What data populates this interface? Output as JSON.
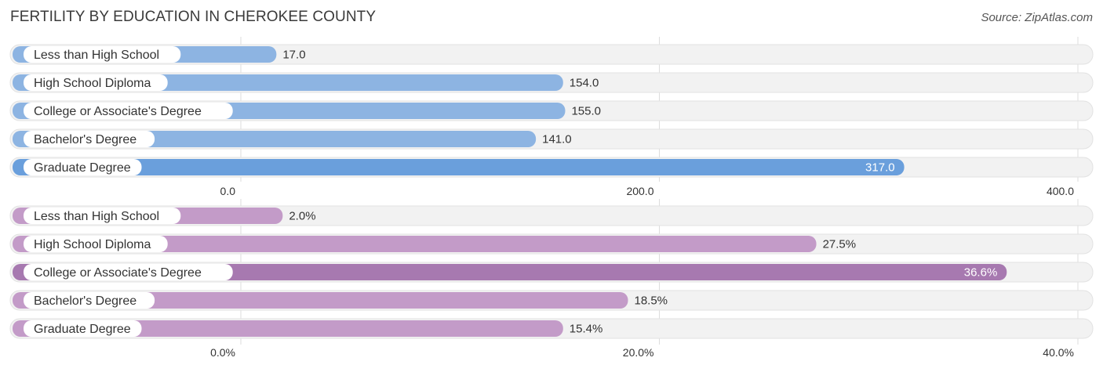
{
  "title": "FERTILITY BY EDUCATION IN CHEROKEE COUNTY",
  "source": "Source: ZipAtlas.com",
  "chart_data": [
    {
      "type": "bar",
      "orientation": "horizontal",
      "categories": [
        "Less than High School",
        "High School Diploma",
        "College or Associate's Degree",
        "Bachelor's Degree",
        "Graduate Degree"
      ],
      "values": [
        17.0,
        154.0,
        155.0,
        141.0,
        317.0
      ],
      "value_labels": [
        "17.0",
        "154.0",
        "155.0",
        "141.0",
        "317.0"
      ],
      "xlim": [
        0,
        400
      ],
      "ticks": [
        0,
        200,
        400
      ],
      "tick_labels": [
        "0.0",
        "200.0",
        "400.0"
      ],
      "color": "#8db4e2",
      "highlight_color": "#6a9fdc",
      "highlight_index": 4
    },
    {
      "type": "bar",
      "orientation": "horizontal",
      "categories": [
        "Less than High School",
        "High School Diploma",
        "College or Associate's Degree",
        "Bachelor's Degree",
        "Graduate Degree"
      ],
      "values": [
        2.0,
        27.5,
        36.6,
        18.5,
        15.4
      ],
      "value_labels": [
        "2.0%",
        "27.5%",
        "36.6%",
        "18.5%",
        "15.4%"
      ],
      "xlim": [
        0,
        40
      ],
      "ticks": [
        0,
        20,
        40
      ],
      "tick_labels": [
        "0.0%",
        "20.0%",
        "40.0%"
      ],
      "color": "#c39bc8",
      "highlight_color": "#a779b0",
      "highlight_index": 2
    }
  ]
}
